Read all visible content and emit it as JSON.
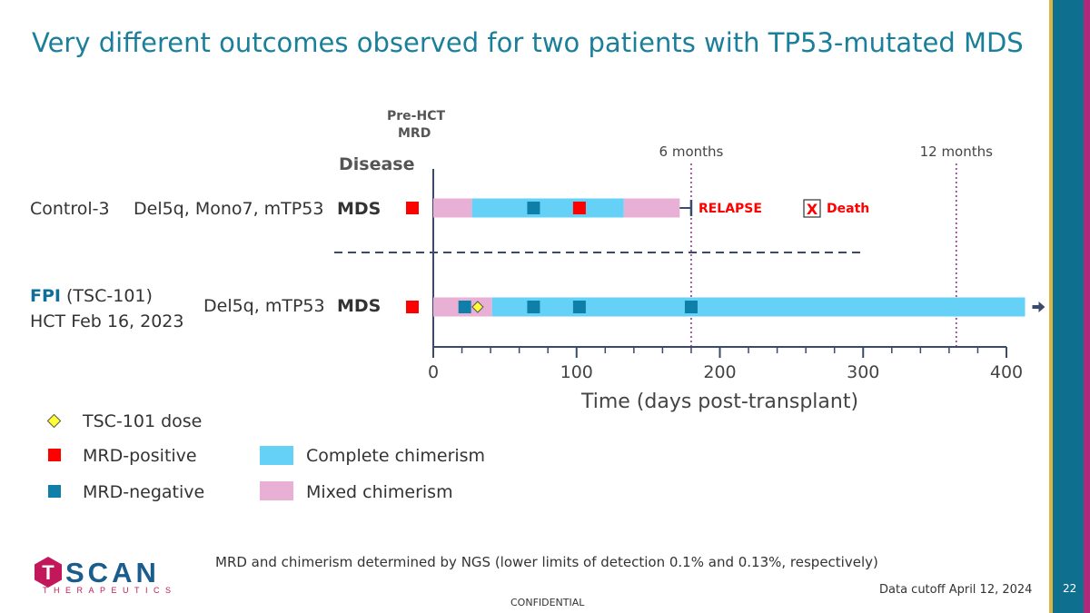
{
  "slide": {
    "title": "Very different outcomes observed for two patients with TP53-mutated MDS",
    "page_number": "22",
    "confidential": "CONFIDENTIAL",
    "data_cutoff": "Data cutoff April 12, 2024",
    "footnote": "MRD and chimerism determined by NGS (lower limits of detection 0.1% and 0.13%, respectively)",
    "logo_text": "SCAN",
    "logo_letter": "T",
    "logo_sub": "THERAPEUTICS",
    "accent_colors": {
      "title": "#1a7f9a",
      "stripe_teal": "#0f6f8f",
      "stripe_gold": "#d9b545",
      "stripe_magenta": "#b0287a",
      "logo_magenta": "#c2185b",
      "logo_blue": "#1a5c8c"
    }
  },
  "header": {
    "pre_hct_line1": "Pre-HCT",
    "pre_hct_line2": "MRD",
    "disease": "Disease"
  },
  "patients": [
    {
      "name": "Control-3",
      "name_rest": "",
      "hct": "",
      "mutations": "Del5q, Mono7, mTP53",
      "disease": "MDS"
    },
    {
      "name": "FPI",
      "name_rest": " (TSC-101)",
      "hct": "HCT Feb 16, 2023",
      "mutations": "Del5q, mTP53",
      "disease": "MDS"
    }
  ],
  "legend": {
    "dose": "TSC-101 dose",
    "mrd_pos": "MRD-positive",
    "mrd_neg": "MRD-negative",
    "complete": "Complete chimerism",
    "mixed": "Mixed chimerism"
  },
  "chart_data": {
    "type": "timeline",
    "xlabel": "Time (days post-transplant)",
    "xlim": [
      0,
      400
    ],
    "xticks": [
      0,
      100,
      200,
      300,
      400
    ],
    "minor_tick_step": 20,
    "reference_lines": [
      {
        "label": "6 months",
        "x": 180
      },
      {
        "label": "12 months",
        "x": 365
      }
    ],
    "colors": {
      "complete": "#66d1f7",
      "mixed": "#e8b0d4",
      "mrd_pos": "#ff0000",
      "mrd_neg": "#0e7fa8",
      "dose": "#ffff33",
      "axis": "#3a4a6a",
      "refline": "#8b2a8b"
    },
    "series": [
      {
        "patient": "Control-3",
        "segments": [
          {
            "start": 0,
            "end": 27,
            "chimerism": "mixed"
          },
          {
            "start": 27,
            "end": 133,
            "chimerism": "complete"
          },
          {
            "start": 133,
            "end": 172,
            "chimerism": "mixed"
          }
        ],
        "pre_hct_mrd": "positive",
        "mrd": [
          {
            "x": 70,
            "status": "negative"
          },
          {
            "x": 102,
            "status": "positive"
          }
        ],
        "doses": [],
        "end_marker": "relapse",
        "end_x": 180,
        "relapse_label": "RELAPSE",
        "death_label": "Death",
        "death_mark": "X",
        "ongoing": false
      },
      {
        "patient": "FPI",
        "segments": [
          {
            "start": 0,
            "end": 41,
            "chimerism": "mixed"
          },
          {
            "start": 41,
            "end": 413,
            "chimerism": "complete"
          }
        ],
        "pre_hct_mrd": "positive",
        "mrd": [
          {
            "x": 22,
            "status": "negative"
          },
          {
            "x": 70,
            "status": "negative"
          },
          {
            "x": 102,
            "status": "negative"
          },
          {
            "x": 180,
            "status": "negative"
          }
        ],
        "doses": [
          {
            "x": 31
          }
        ],
        "end_marker": "ongoing",
        "ongoing": true
      }
    ]
  }
}
